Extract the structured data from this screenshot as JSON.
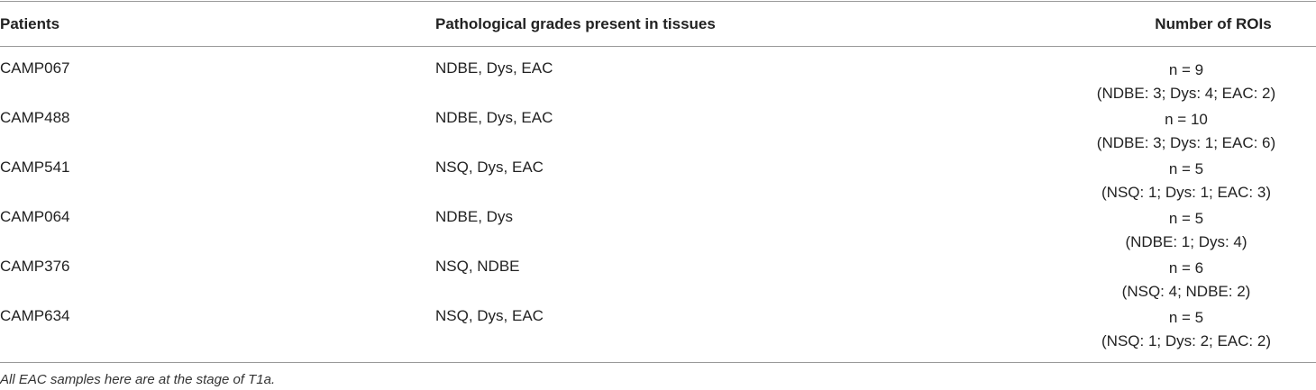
{
  "table": {
    "header": [
      "Patients",
      "Pathological grades present in tissues",
      "Number of ROIs"
    ],
    "rows": [
      [
        "CAMP067",
        "NDBE, Dys, EAC",
        "n = 9",
        "(NDBE: 3; Dys: 4; EAC: 2)"
      ],
      [
        "CAMP488",
        "NDBE, Dys, EAC",
        "n = 10",
        "(NDBE: 3; Dys: 1; EAC: 6)"
      ],
      [
        "CAMP541",
        "NSQ, Dys, EAC",
        "n = 5",
        "(NSQ: 1; Dys: 1; EAC: 3)"
      ],
      [
        "CAMP064",
        "NDBE, Dys",
        "n = 5",
        "(NDBE: 1; Dys: 4)"
      ],
      [
        "CAMP376",
        "NSQ, NDBE",
        "n = 6",
        "(NSQ: 4; NDBE: 2)"
      ],
      [
        "CAMP634",
        "NSQ, Dys, EAC",
        "n = 5",
        "(NSQ: 1; Dys: 2; EAC: 2)"
      ]
    ],
    "footnote": "All EAC samples here are at the stage of T1a."
  }
}
